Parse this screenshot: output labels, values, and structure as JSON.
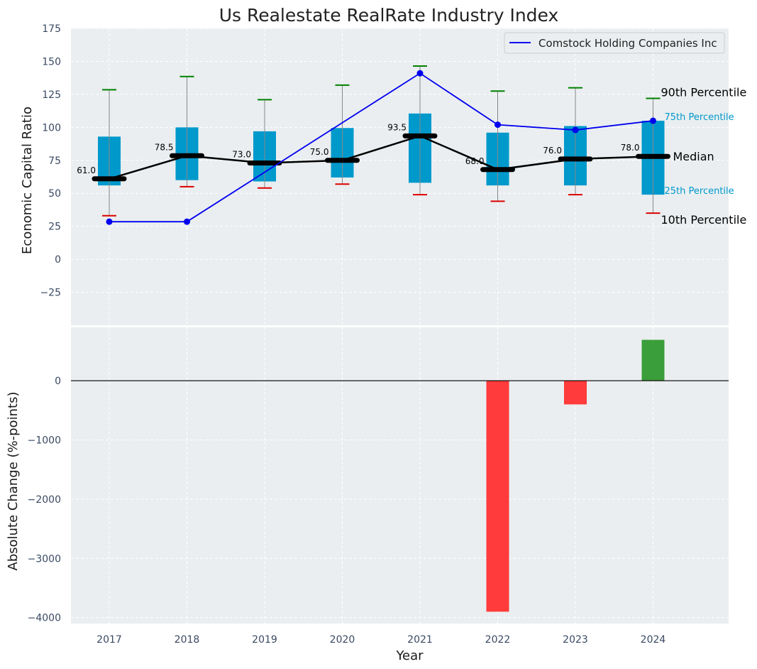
{
  "chart_data": [
    {
      "type": "box",
      "title": "Us Realestate RealRate Industry Index",
      "xlabel": "",
      "ylabel": "Economic Capital Ratio",
      "ylim": [
        -50,
        175
      ],
      "yticks": [
        -25,
        0,
        25,
        50,
        75,
        100,
        125,
        150,
        175
      ],
      "grid": true,
      "legend_position": "top-right",
      "categories": [
        "2017",
        "2018",
        "2019",
        "2020",
        "2021",
        "2022",
        "2023",
        "2024"
      ],
      "boxes": [
        {
          "year": "2017",
          "p10": 33,
          "p25": 56,
          "median": 61.0,
          "p75": 93,
          "p90": 128.5
        },
        {
          "year": "2018",
          "p10": 55,
          "p25": 60,
          "median": 78.5,
          "p75": 100,
          "p90": 138.5
        },
        {
          "year": "2019",
          "p10": 54,
          "p25": 59,
          "median": 73.0,
          "p75": 97,
          "p90": 121
        },
        {
          "year": "2020",
          "p10": 57,
          "p25": 62,
          "median": 75.0,
          "p75": 99.5,
          "p90": 132
        },
        {
          "year": "2021",
          "p10": 49,
          "p25": 58,
          "median": 93.5,
          "p75": 110.5,
          "p90": 146.5
        },
        {
          "year": "2022",
          "p10": 44,
          "p25": 56,
          "median": 68.0,
          "p75": 96,
          "p90": 127.5
        },
        {
          "year": "2023",
          "p10": 49,
          "p25": 56,
          "median": 76.0,
          "p75": 101,
          "p90": 130
        },
        {
          "year": "2024",
          "p10": 35,
          "p25": 49,
          "median": 78.0,
          "p75": 105,
          "p90": 122
        }
      ],
      "median_labels": [
        "61.0",
        "78.5",
        "73.0",
        "75.0",
        "93.5",
        "68.0",
        "76.0",
        "78.0"
      ],
      "series": [
        {
          "name": "Comstock Holding Companies Inc",
          "values": [
            28.5,
            28.5,
            null,
            null,
            141,
            102,
            98,
            105
          ]
        }
      ],
      "percentile_labels": {
        "p90": "90th Percentile",
        "p75": "75th Percentile",
        "median": "Median",
        "p25": "25th Percentile",
        "p10": "10th Percentile"
      }
    },
    {
      "type": "bar",
      "xlabel": "Year",
      "ylabel": "Absolute Change (%-points)",
      "ylim": [
        -4100,
        900
      ],
      "yticks": [
        -4000,
        -3000,
        -2000,
        -1000,
        0
      ],
      "grid": true,
      "categories": [
        "2017",
        "2018",
        "2019",
        "2020",
        "2021",
        "2022",
        "2023",
        "2024"
      ],
      "values": [
        null,
        null,
        null,
        null,
        null,
        -3900,
        -400,
        690
      ]
    }
  ],
  "colors": {
    "plot_bg": "#eaeef0",
    "box": "#0099cc",
    "median_line": "#000000",
    "company_line": "#0000ee",
    "whisker": "#888888",
    "p90_cap": "#008000",
    "p10_cap": "#dd0000",
    "bar_negative": "#ff3b3b",
    "bar_positive": "#3a9e3a",
    "p75_label": "#0099cc",
    "p25_label": "#0099cc"
  }
}
